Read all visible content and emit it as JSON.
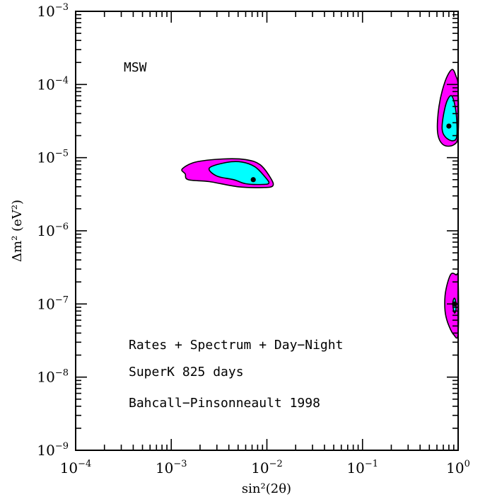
{
  "chart_data": {
    "type": "contour",
    "title": "",
    "xlabel": "sin²(2θ)",
    "ylabel": "Δm² (eV²)",
    "x_scale": "log",
    "y_scale": "log",
    "xlim": [
      0.0001,
      1
    ],
    "ylim": [
      1e-09,
      0.001
    ],
    "grid": false,
    "x_ticks": [
      {
        "base": "10",
        "exp": "−4",
        "value": 0.0001
      },
      {
        "base": "10",
        "exp": "−3",
        "value": 0.001
      },
      {
        "base": "10",
        "exp": "−2",
        "value": 0.01
      },
      {
        "base": "10",
        "exp": "−1",
        "value": 0.1
      },
      {
        "base": "10",
        "exp": "0",
        "value": 1
      }
    ],
    "y_ticks": [
      {
        "base": "10",
        "exp": "−9",
        "value": 1e-09
      },
      {
        "base": "10",
        "exp": "−8",
        "value": 1e-08
      },
      {
        "base": "10",
        "exp": "−7",
        "value": 1e-07
      },
      {
        "base": "10",
        "exp": "−6",
        "value": 1e-06
      },
      {
        "base": "10",
        "exp": "−5",
        "value": 1e-05
      },
      {
        "base": "10",
        "exp": "−4",
        "value": 0.0001
      },
      {
        "base": "10",
        "exp": "−3",
        "value": 0.001
      }
    ],
    "annotations": [
      "MSW",
      "Rates + Spectrum + Day−Night",
      "SuperK 825 days",
      "Bahcall−Pinsonneault 1998"
    ],
    "best_fit_points": [
      {
        "x": 0.0072,
        "y": 5e-06
      },
      {
        "x": 0.8,
        "y": 2.7e-05
      },
      {
        "x": 0.92,
        "y": 1e-07
      }
    ],
    "regions": [
      {
        "level": "outer",
        "color": "#ff00ff",
        "boundary": [
          [
            0.0013,
            7e-06
          ],
          [
            0.0018,
            8.7e-06
          ],
          [
            0.0035,
            9.6e-06
          ],
          [
            0.006,
            9.4e-06
          ],
          [
            0.0085,
            8e-06
          ],
          [
            0.011,
            5.2e-06
          ],
          [
            0.0115,
            4.1e-06
          ],
          [
            0.009,
            3.9e-06
          ],
          [
            0.005,
            4e-06
          ],
          [
            0.0025,
            4.7e-06
          ],
          [
            0.0015,
            5e-06
          ],
          [
            0.0014,
            6e-06
          ]
        ]
      },
      {
        "level": "inner",
        "color": "#00ffff",
        "boundary": [
          [
            0.0025,
            7.2e-06
          ],
          [
            0.0038,
            8.6e-06
          ],
          [
            0.0055,
            8.7e-06
          ],
          [
            0.0075,
            7.5e-06
          ],
          [
            0.0095,
            5.5e-06
          ],
          [
            0.0105,
            4.5e-06
          ],
          [
            0.009,
            4.3e-06
          ],
          [
            0.006,
            4.4e-06
          ],
          [
            0.0045,
            5e-06
          ],
          [
            0.003,
            5.6e-06
          ]
        ]
      },
      {
        "level": "outer",
        "color": "#ff00ff",
        "boundary": [
          [
            0.61,
            2.2e-05
          ],
          [
            0.63,
            5e-05
          ],
          [
            0.73,
            0.00011
          ],
          [
            0.86,
            0.00016
          ],
          [
            0.95,
            0.00013
          ],
          [
            1.0,
            9e-05
          ],
          [
            1.0,
            2.1e-05
          ],
          [
            0.9,
            1.5e-05
          ],
          [
            0.7,
            1.5e-05
          ]
        ]
      },
      {
        "level": "inner",
        "color": "#00ffff",
        "boundary": [
          [
            0.68,
            2.5e-05
          ],
          [
            0.72,
            4.5e-05
          ],
          [
            0.79,
            6.5e-05
          ],
          [
            0.87,
            6.8e-05
          ],
          [
            0.95,
            4.2e-05
          ],
          [
            0.97,
            2e-05
          ],
          [
            0.88,
            1.7e-05
          ],
          [
            0.74,
            1.9e-05
          ]
        ]
      },
      {
        "level": "outer",
        "color": "#ff00ff",
        "boundary": [
          [
            0.73,
            1.3e-07
          ],
          [
            0.78,
            2e-07
          ],
          [
            0.85,
            2.6e-07
          ],
          [
            0.95,
            2.5e-07
          ],
          [
            1.0,
            2.2e-07
          ],
          [
            1.0,
            4e-08
          ],
          [
            0.9,
            3.8e-08
          ],
          [
            0.78,
            5.5e-08
          ],
          [
            0.73,
            8e-08
          ]
        ]
      },
      {
        "level": "inner",
        "color": "#00ffff",
        "boundary": [
          [
            0.88,
            1.05e-07
          ],
          [
            0.91,
            1.2e-07
          ],
          [
            0.94,
            1.1e-07
          ],
          [
            0.95,
            8.5e-08
          ],
          [
            0.92,
            7.5e-08
          ],
          [
            0.89,
            8.5e-08
          ]
        ]
      }
    ]
  }
}
